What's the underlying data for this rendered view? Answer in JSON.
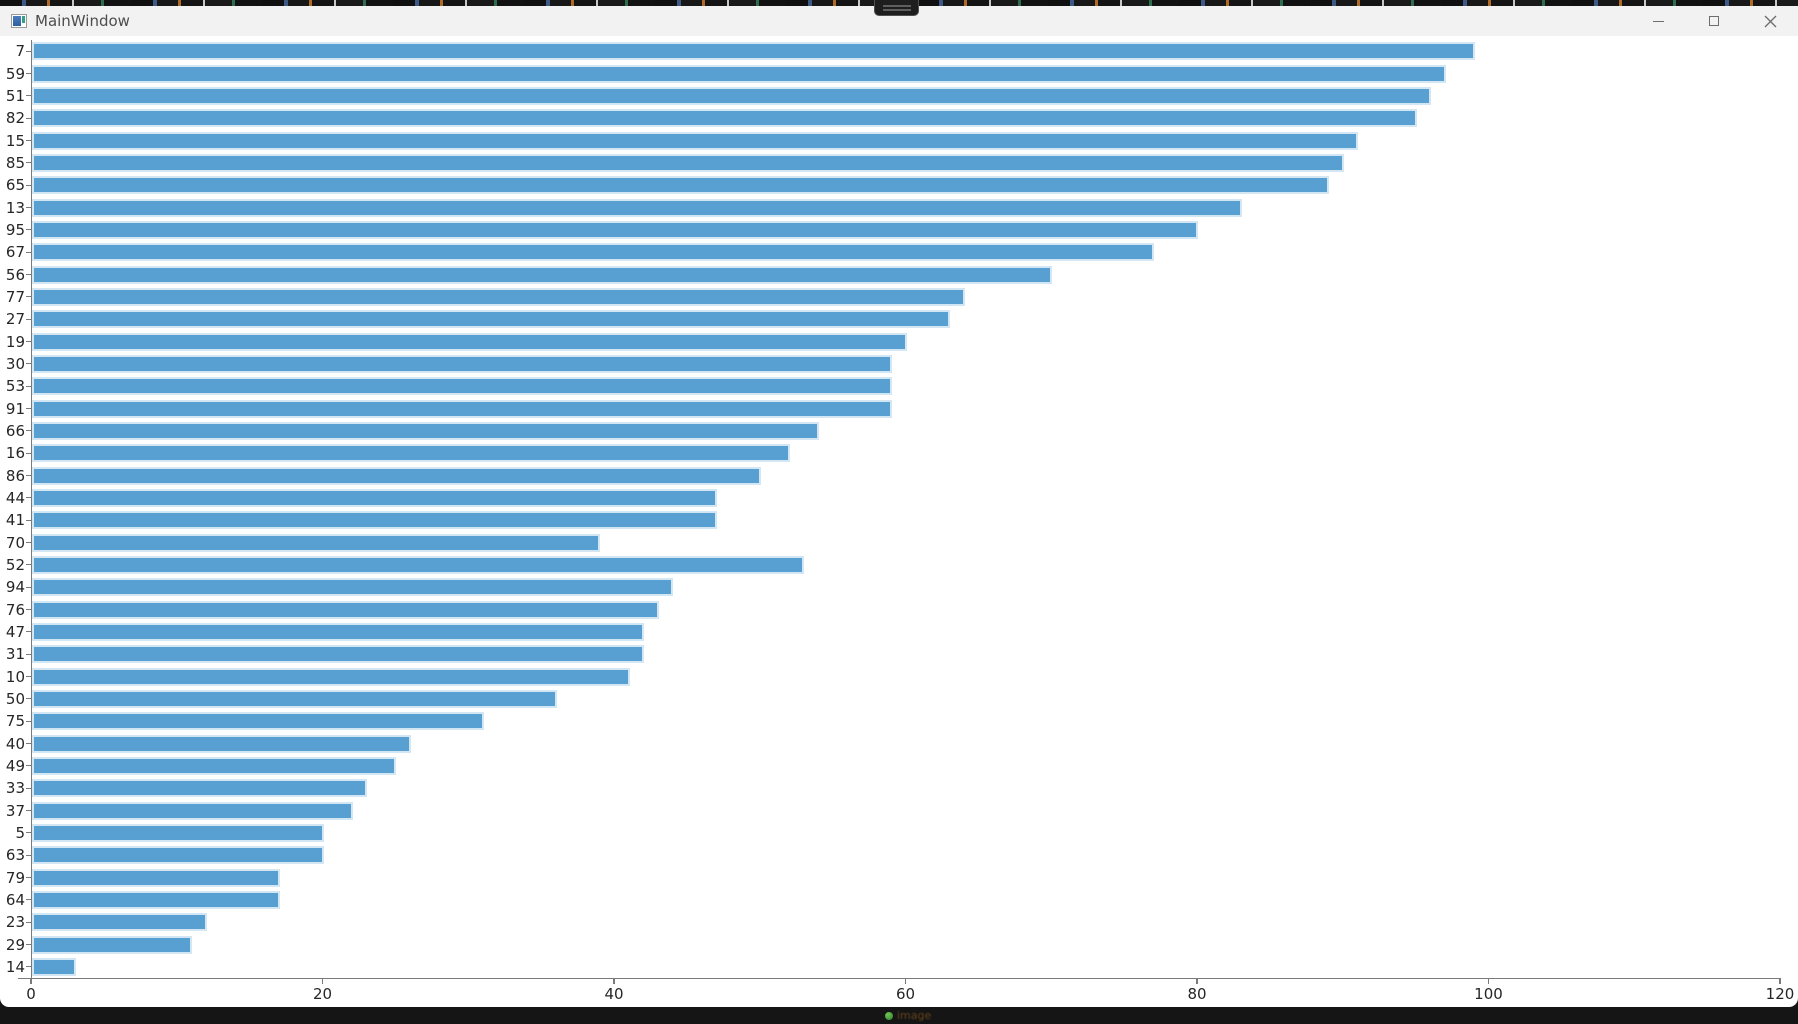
{
  "window": {
    "title": "MainWindow",
    "controls": [
      "minimize",
      "maximize",
      "close"
    ]
  },
  "chart_data": {
    "type": "bar",
    "orientation": "horizontal",
    "title": "",
    "xlabel": "",
    "ylabel": "",
    "categories": [
      "7",
      "59",
      "51",
      "82",
      "15",
      "85",
      "65",
      "13",
      "95",
      "67",
      "56",
      "77",
      "27",
      "19",
      "30",
      "53",
      "91",
      "66",
      "16",
      "86",
      "44",
      "41",
      "70",
      "52",
      "94",
      "76",
      "47",
      "31",
      "10",
      "50",
      "75",
      "40",
      "49",
      "33",
      "37",
      "5",
      "63",
      "79",
      "64",
      "23",
      "29",
      "14"
    ],
    "values": [
      99,
      97,
      96,
      95,
      91,
      90,
      89,
      83,
      80,
      77,
      70,
      64,
      63,
      60,
      59,
      59,
      59,
      54,
      52,
      50,
      47,
      47,
      39,
      53,
      44,
      43,
      42,
      42,
      41,
      36,
      31,
      26,
      25,
      23,
      22,
      20,
      20,
      17,
      17,
      12,
      11,
      3
    ],
    "xlim": [
      0,
      120
    ],
    "xticks": [
      0,
      20,
      40,
      60,
      80,
      100,
      120
    ],
    "xtick_labels": [
      "0",
      "20",
      "40",
      "60",
      "80",
      "100",
      "120"
    ],
    "grid": false,
    "legend": null,
    "bar_color": "#58A0D2",
    "bar_edge_color": "#D2E6F4",
    "axis_color": "#7A7A7A",
    "tick_label_color": "#262626"
  },
  "taskbar": {
    "hint_icon": "green-dot-icon",
    "hint_text": "image"
  }
}
